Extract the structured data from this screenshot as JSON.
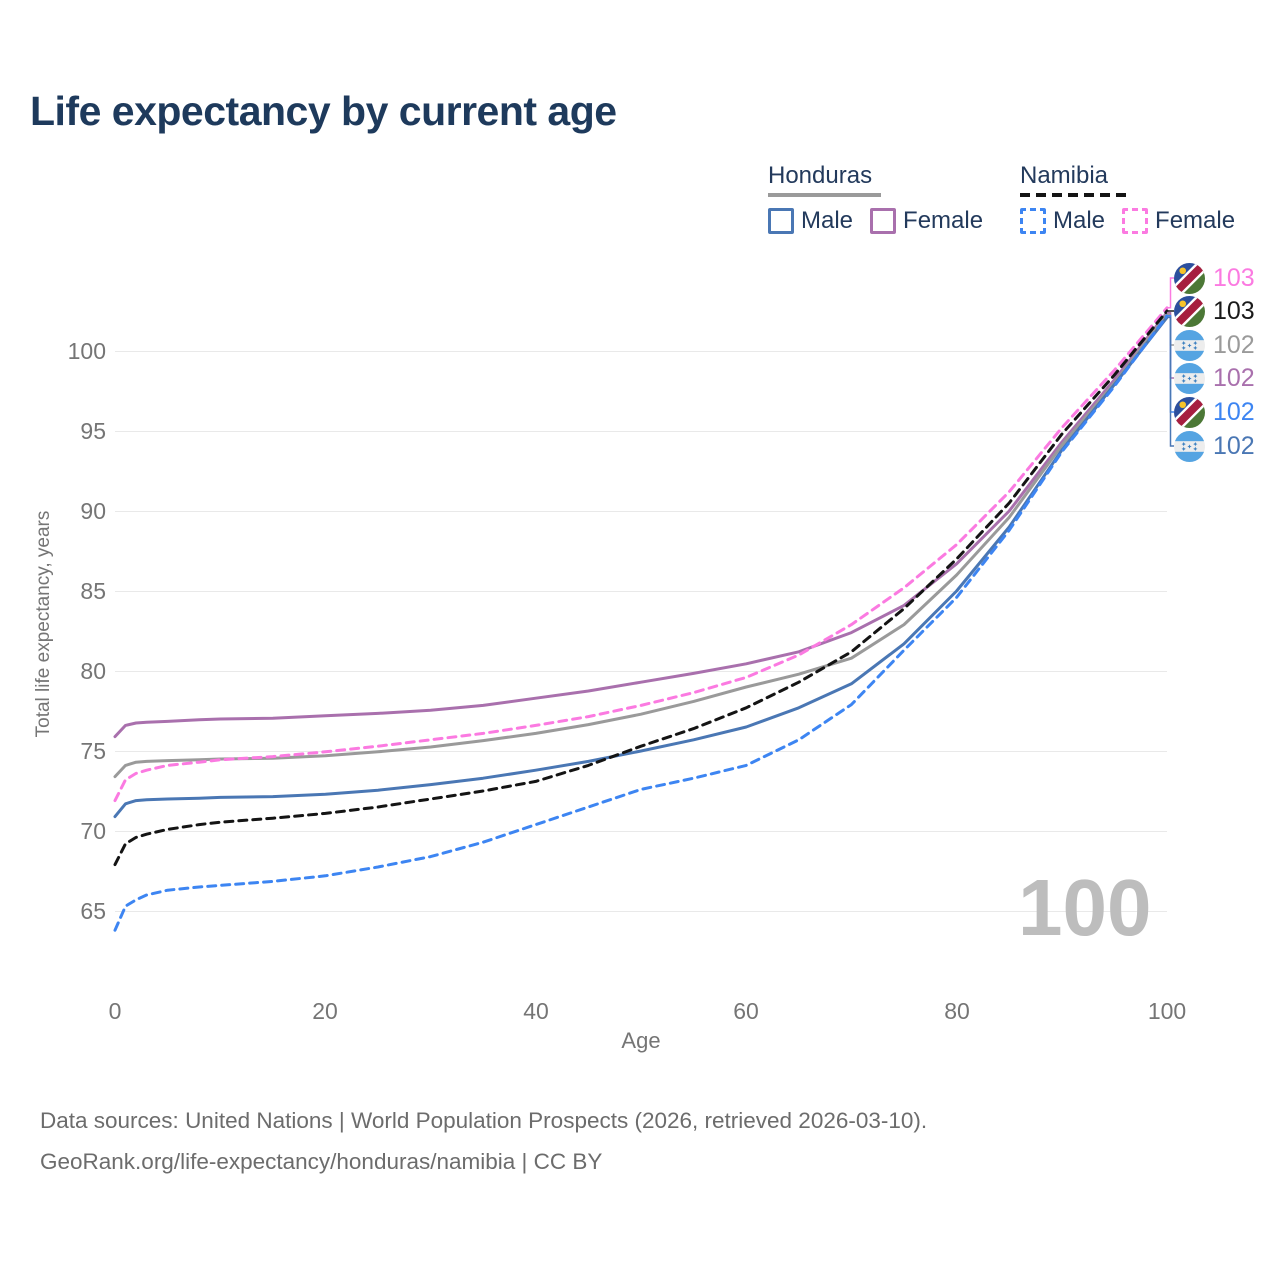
{
  "title": "Life expectancy by current age",
  "watermark": "100",
  "legend": {
    "groups": [
      {
        "country": "Honduras",
        "entries": [
          {
            "label": "Male"
          },
          {
            "label": "Female"
          }
        ]
      },
      {
        "country": "Namibia",
        "entries": [
          {
            "label": "Male"
          },
          {
            "label": "Female"
          }
        ]
      }
    ]
  },
  "axes": {
    "y_title": "Total life expectancy, years",
    "x_title": "Age",
    "y_ticks": [
      "100",
      "95",
      "90",
      "85",
      "80",
      "75",
      "70",
      "65"
    ],
    "x_ticks": [
      "0",
      "20",
      "40",
      "60",
      "80",
      "100"
    ]
  },
  "end_labels": [
    {
      "series_id": "namibia-female",
      "flag": "namibia",
      "value": "103",
      "color": "#fb7ae1"
    },
    {
      "series_id": "namibia-total",
      "flag": "namibia",
      "value": "103",
      "color": "#1a1a1a"
    },
    {
      "series_id": "honduras-total",
      "flag": "honduras",
      "value": "102",
      "color": "#9a9a9a"
    },
    {
      "series_id": "honduras-female",
      "flag": "honduras",
      "value": "102",
      "color": "#a970ad"
    },
    {
      "series_id": "namibia-male",
      "flag": "namibia",
      "value": "102",
      "color": "#3d85f2"
    },
    {
      "series_id": "honduras-male",
      "flag": "honduras",
      "value": "102",
      "color": "#4a77b4"
    }
  ],
  "footer": {
    "line1": "Data sources: United Nations | World Population Prospects (2026, retrieved 2026-03-10).",
    "line2": "GeoRank.org/life-expectancy/honduras/namibia | CC BY"
  },
  "chart_data": {
    "type": "line",
    "title": "Life expectancy by current age",
    "xlabel": "Age",
    "ylabel": "Total life expectancy, years",
    "xlim": [
      0,
      100
    ],
    "ylim": [
      63,
      103
    ],
    "grid": "horizontal",
    "legend_position": "top-right",
    "x": [
      0,
      1,
      2,
      3,
      5,
      8,
      10,
      15,
      20,
      25,
      30,
      35,
      40,
      45,
      50,
      55,
      60,
      65,
      70,
      75,
      80,
      85,
      90,
      95,
      100
    ],
    "series": [
      {
        "id": "honduras-female",
        "name": "Honduras Female",
        "color": "#a970ad",
        "dashed": false,
        "y": [
          75.9,
          76.6,
          76.75,
          76.8,
          76.85,
          76.95,
          77.0,
          77.05,
          77.2,
          77.35,
          77.55,
          77.85,
          78.3,
          78.75,
          79.3,
          79.85,
          80.45,
          81.2,
          82.4,
          84.1,
          86.7,
          90.0,
          94.3,
          98.2,
          102.4
        ]
      },
      {
        "id": "honduras-total",
        "name": "Honduras",
        "color": "#9a9a9a",
        "dashed": false,
        "y": [
          73.4,
          74.1,
          74.3,
          74.35,
          74.4,
          74.45,
          74.5,
          74.55,
          74.7,
          74.95,
          75.25,
          75.65,
          76.1,
          76.65,
          77.3,
          78.1,
          79.0,
          79.8,
          80.8,
          82.9,
          86.0,
          89.6,
          94.1,
          98.0,
          102.3
        ]
      },
      {
        "id": "honduras-male",
        "name": "Honduras Male",
        "color": "#4a77b4",
        "dashed": false,
        "y": [
          70.9,
          71.7,
          71.9,
          71.95,
          72.0,
          72.05,
          72.1,
          72.15,
          72.3,
          72.55,
          72.9,
          73.3,
          73.8,
          74.35,
          75.0,
          75.7,
          76.5,
          77.7,
          79.2,
          81.7,
          85.0,
          89.0,
          93.8,
          97.9,
          102.1
        ]
      },
      {
        "id": "namibia-female",
        "name": "Namibia Female",
        "color": "#fb7ae1",
        "dashed": true,
        "y": [
          71.9,
          73.2,
          73.6,
          73.8,
          74.1,
          74.3,
          74.45,
          74.65,
          74.95,
          75.3,
          75.7,
          76.1,
          76.6,
          77.15,
          77.85,
          78.65,
          79.6,
          81.0,
          82.9,
          85.2,
          87.9,
          91.2,
          95.2,
          98.8,
          102.7
        ]
      },
      {
        "id": "namibia-total",
        "name": "Namibia",
        "color": "#141414",
        "dashed": true,
        "y": [
          67.9,
          69.2,
          69.6,
          69.8,
          70.1,
          70.4,
          70.55,
          70.8,
          71.1,
          71.5,
          72.0,
          72.5,
          73.1,
          74.1,
          75.3,
          76.4,
          77.7,
          79.3,
          81.2,
          83.9,
          87.0,
          90.5,
          94.8,
          98.5,
          102.5
        ]
      },
      {
        "id": "namibia-male",
        "name": "Namibia Male",
        "color": "#3d85f2",
        "dashed": true,
        "y": [
          63.8,
          65.3,
          65.7,
          66.0,
          66.3,
          66.5,
          66.6,
          66.85,
          67.2,
          67.75,
          68.4,
          69.3,
          70.4,
          71.5,
          72.6,
          73.3,
          74.1,
          75.7,
          77.9,
          81.3,
          84.6,
          88.8,
          93.7,
          97.8,
          102.2
        ]
      }
    ]
  }
}
